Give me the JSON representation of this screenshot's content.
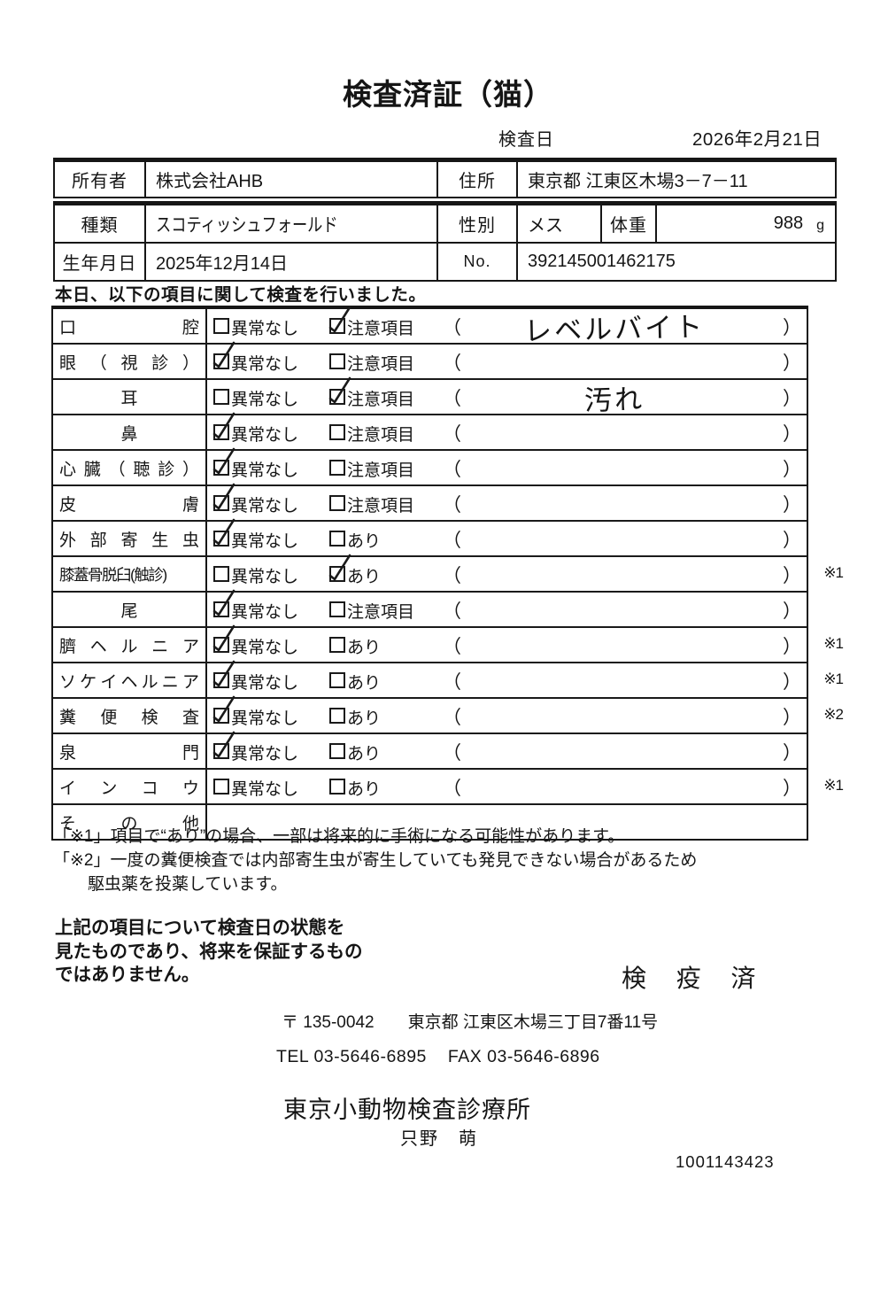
{
  "colors": {
    "ink": "#161616",
    "paper": "#ffffff"
  },
  "title": "検査済証（猫）",
  "exam_date": {
    "label": "検査日",
    "value": "2026年2月21日"
  },
  "owner_table": {
    "owner_label": "所有者",
    "owner_value": "株式会社AHB",
    "address_label": "住所",
    "address_value": "東京都 江東区木場3－7－11"
  },
  "pet_table": {
    "breed_label": "種類",
    "breed_value": "スコティッシュフォールド",
    "sex_label": "性別",
    "sex_value": "メス",
    "weight_label": "体重",
    "weight_value": "988",
    "weight_unit": "g",
    "birth_label": "生年月日",
    "birth_value": "2025年12月14日",
    "no_label": "No.",
    "no_value": "392145001462175"
  },
  "intro": "本日、以下の項目に関して検査を行いました。",
  "check_table": {
    "rows": [
      {
        "label": "口腔",
        "align": "justify",
        "opt1": "異常なし",
        "opt1_checked": false,
        "opt2": "注意項目",
        "opt2_checked": true,
        "note": "レベルバイト",
        "mark": ""
      },
      {
        "label": "眼（視診）",
        "align": "justify",
        "opt1": "異常なし",
        "opt1_checked": true,
        "opt2": "注意項目",
        "opt2_checked": false,
        "note": "",
        "mark": ""
      },
      {
        "label": "耳",
        "align": "center",
        "opt1": "異常なし",
        "opt1_checked": false,
        "opt2": "注意項目",
        "opt2_checked": true,
        "note": "汚れ",
        "mark": ""
      },
      {
        "label": "鼻",
        "align": "center",
        "opt1": "異常なし",
        "opt1_checked": true,
        "opt2": "注意項目",
        "opt2_checked": false,
        "note": "",
        "mark": ""
      },
      {
        "label": "心臓（聴診）",
        "align": "justify",
        "opt1": "異常なし",
        "opt1_checked": true,
        "opt2": "注意項目",
        "opt2_checked": false,
        "note": "",
        "mark": ""
      },
      {
        "label": "皮膚",
        "align": "justify",
        "opt1": "異常なし",
        "opt1_checked": true,
        "opt2": "注意項目",
        "opt2_checked": false,
        "note": "",
        "mark": ""
      },
      {
        "label": "外部寄生虫",
        "align": "justify",
        "opt1": "異常なし",
        "opt1_checked": true,
        "opt2": "あり",
        "opt2_checked": false,
        "note": "",
        "mark": ""
      },
      {
        "label": "膝蓋骨脱臼(触診)",
        "align": "plain",
        "opt1": "異常なし",
        "opt1_checked": false,
        "opt2": "あり",
        "opt2_checked": true,
        "note": "",
        "mark": "※1"
      },
      {
        "label": "尾",
        "align": "center",
        "opt1": "異常なし",
        "opt1_checked": true,
        "opt2": "注意項目",
        "opt2_checked": false,
        "note": "",
        "mark": ""
      },
      {
        "label": "臍ヘルニア",
        "align": "justify",
        "opt1": "異常なし",
        "opt1_checked": true,
        "opt2": "あり",
        "opt2_checked": false,
        "note": "",
        "mark": "※1"
      },
      {
        "label": "ソケイヘルニア",
        "align": "justify",
        "opt1": "異常なし",
        "opt1_checked": true,
        "opt2": "あり",
        "opt2_checked": false,
        "note": "",
        "mark": "※1"
      },
      {
        "label": "糞便検査",
        "align": "justify",
        "opt1": "異常なし",
        "opt1_checked": true,
        "opt2": "あり",
        "opt2_checked": false,
        "note": "",
        "mark": "※2"
      },
      {
        "label": "泉門",
        "align": "justify",
        "opt1": "異常なし",
        "opt1_checked": true,
        "opt2": "あり",
        "opt2_checked": false,
        "note": "",
        "mark": ""
      },
      {
        "label": "インコウ",
        "align": "justify",
        "opt1": "異常なし",
        "opt1_checked": false,
        "opt2": "あり",
        "opt2_checked": false,
        "note": "",
        "mark": "※1"
      },
      {
        "label": "その他",
        "align": "justify",
        "empty": true,
        "opt1": "",
        "opt1_checked": false,
        "opt2": "",
        "opt2_checked": false,
        "note": "",
        "mark": ""
      }
    ]
  },
  "footnotes": {
    "fn1": "「※1」項目で“あり”の場合、一部は将来的に手術になる可能性があります。",
    "fn2_line1": "「※2」一度の糞便検査では内部寄生虫が寄生していても発見できない場合があるため",
    "fn2_line2": "駆虫薬を投薬しています。"
  },
  "statement": {
    "line1": "上記の項目について検査日の状態を",
    "line2": "見たものであり、将来を保証するもの",
    "line3": "ではありません。"
  },
  "stamp": "検 疫 済",
  "footer": {
    "postal_code": "〒 135-0042",
    "address": "東京都 江東区木場三丁目7番11号",
    "tel": "TEL 03-5646-6895",
    "fax": "FAX 03-5646-6896",
    "clinic_name": "東京小動物検査診療所",
    "examiner_name": "只野　萌",
    "serial_number": "1001143423"
  }
}
